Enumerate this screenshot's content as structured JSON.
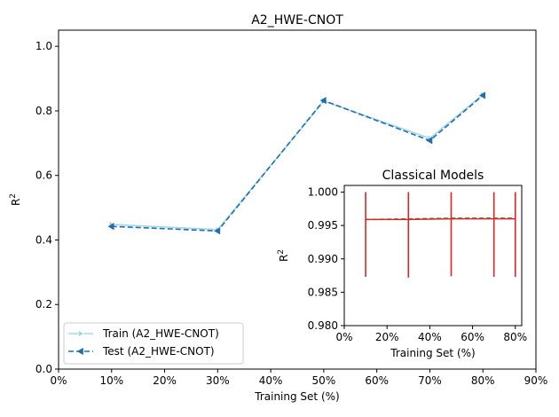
{
  "chart_data": [
    {
      "type": "line",
      "title": "A2_HWE-CNOT",
      "xlabel": "Training Set (%)",
      "ylabel_base": "R",
      "ylabel_sup": "2",
      "xlim": [
        0,
        90
      ],
      "ylim": [
        0,
        1.05
      ],
      "xticks": [
        0,
        10,
        20,
        30,
        40,
        50,
        60,
        70,
        80,
        90
      ],
      "xtick_labels": [
        "0%",
        "10%",
        "20%",
        "30%",
        "40%",
        "50%",
        "60%",
        "70%",
        "80%",
        "90%"
      ],
      "yticks": [
        0.0,
        0.2,
        0.4,
        0.6,
        0.8,
        1.0
      ],
      "ytick_labels": [
        "0.0",
        "0.2",
        "0.4",
        "0.6",
        "0.8",
        "1.0"
      ],
      "grid": false,
      "legend_position": "lower-left",
      "series": [
        {
          "name": "Train (A2_HWE-CNOT)",
          "color": "#a6d6e6",
          "linestyle": "solid",
          "marker": "triangle-right",
          "x": [
            10,
            30,
            50,
            70,
            80
          ],
          "y": [
            0.448,
            0.432,
            0.83,
            0.715,
            0.85
          ]
        },
        {
          "name": "Test (A2_HWE-CNOT)",
          "color": "#1f6fae",
          "linestyle": "dashed",
          "marker": "triangle-left",
          "x": [
            10,
            30,
            50,
            70,
            80
          ],
          "y": [
            0.442,
            0.428,
            0.832,
            0.708,
            0.848
          ]
        }
      ]
    },
    {
      "type": "line",
      "title": "Classical Models",
      "xlabel": "Training Set (%)",
      "ylabel_base": "R",
      "ylabel_sup": "2",
      "xlim": [
        0,
        83
      ],
      "ylim": [
        0.98,
        1.001
      ],
      "xticks": [
        0,
        20,
        40,
        60,
        80
      ],
      "xtick_labels": [
        "0%",
        "20%",
        "40%",
        "60%",
        "80%"
      ],
      "yticks": [
        0.98,
        0.985,
        0.99,
        0.995,
        1.0
      ],
      "ytick_labels": [
        "0.980",
        "0.985",
        "0.990",
        "0.995",
        "1.000"
      ],
      "grid": false,
      "series": [
        {
          "color": "#2ca02c",
          "linestyle": "dashed",
          "x": [
            10,
            30,
            50,
            70,
            80
          ],
          "y": [
            0.9959,
            0.996,
            0.9961,
            0.9961,
            0.9961
          ]
        },
        {
          "color": "#d62728",
          "linestyle": "solid",
          "x": [
            10,
            30,
            50,
            70,
            80
          ],
          "y": [
            0.9959,
            0.9959,
            0.996,
            0.996,
            0.996
          ]
        }
      ],
      "error_bars": {
        "color": "#d62728",
        "x": [
          10,
          30,
          50,
          70,
          80
        ],
        "low": [
          0.9873,
          0.9872,
          0.9874,
          0.9873,
          0.9873
        ],
        "high": [
          1.0,
          1.0,
          1.0,
          1.0,
          1.0
        ]
      }
    }
  ]
}
